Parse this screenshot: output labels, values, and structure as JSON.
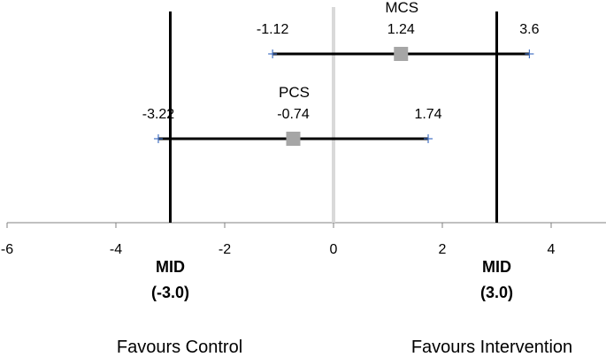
{
  "chart_data": {
    "type": "forest",
    "title": "",
    "xlabel": "",
    "ylabel": "",
    "xlim": [
      -6,
      5
    ],
    "xticks": [
      -6,
      -4,
      -2,
      0,
      2,
      4
    ],
    "xtick_labels": [
      "-6",
      "-4",
      "-2",
      "0",
      "2",
      "4"
    ],
    "grid": false,
    "series": [
      {
        "name": "MCS",
        "estimate": 1.24,
        "lower": -1.12,
        "upper": 3.6,
        "estimate_label": "1.24",
        "lower_label": "-1.12",
        "upper_label": "3.6"
      },
      {
        "name": "PCS",
        "estimate": -0.74,
        "lower": -3.22,
        "upper": 1.74,
        "estimate_label": "-0.74",
        "lower_label": "-3.22",
        "upper_label": "1.74"
      }
    ],
    "reference_line": {
      "x": 0,
      "color": "#d9d9d9"
    },
    "mid_lines": [
      {
        "x": -3.0,
        "label_line1": "MID",
        "label_line2": "(-3.0)"
      },
      {
        "x": 3.0,
        "label_line1": "MID",
        "label_line2": "(3.0)"
      }
    ],
    "annotations": {
      "left": "Favours Control",
      "right": "Favours Intervention"
    },
    "colors": {
      "line": "#000000",
      "marker": "#a6a6a6",
      "whisker_tick": "#4472c4",
      "axis": "#808080"
    }
  }
}
